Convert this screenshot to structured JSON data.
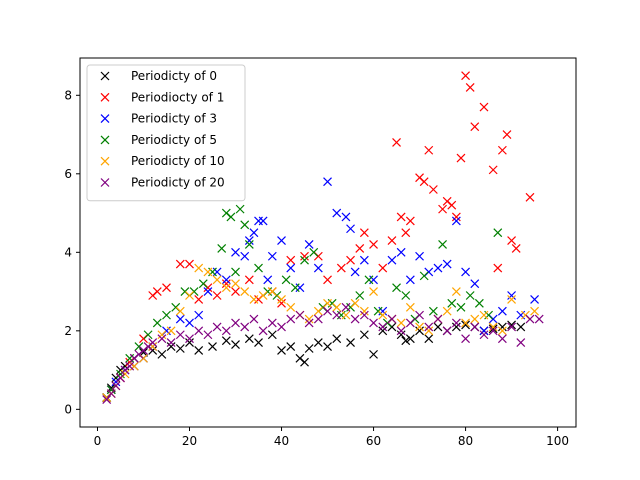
{
  "chart_data": {
    "type": "scatter",
    "title": "",
    "xlabel": "",
    "ylabel": "",
    "xlim": [
      -3.8,
      104
    ],
    "ylim": [
      -0.45,
      8.95
    ],
    "xticks": [
      0,
      20,
      40,
      60,
      80,
      100
    ],
    "yticks": [
      0,
      2,
      4,
      6,
      8
    ],
    "grid": false,
    "legend_position": "upper-left",
    "series": [
      {
        "name": "Periodicty of 0",
        "color": "#000000",
        "x": [
          2,
          3,
          4,
          5,
          6,
          8,
          10,
          12,
          14,
          16,
          18,
          20,
          22,
          25,
          28,
          30,
          33,
          35,
          38,
          40,
          42,
          44,
          45,
          46,
          48,
          50,
          52,
          55,
          58,
          60,
          62,
          64,
          66,
          67,
          68,
          70,
          72,
          74,
          76,
          78,
          80,
          82,
          84,
          86,
          88,
          90,
          92
        ],
        "y": [
          0.3,
          0.55,
          0.8,
          1.0,
          1.1,
          1.3,
          1.45,
          1.5,
          1.4,
          1.6,
          1.55,
          1.7,
          1.5,
          1.6,
          1.75,
          1.65,
          1.8,
          1.7,
          1.9,
          1.5,
          1.6,
          1.3,
          1.2,
          1.55,
          1.7,
          1.6,
          1.8,
          1.7,
          1.9,
          1.4,
          2.0,
          2.1,
          1.9,
          1.75,
          1.8,
          2.0,
          1.8,
          2.1,
          2.0,
          2.1,
          2.15,
          2.1,
          2.0,
          2.05,
          2.1,
          2.15,
          2.1
        ]
      },
      {
        "name": "Periodiocty of 1",
        "color": "#ff0000",
        "x": [
          2,
          3,
          5,
          7,
          10,
          12,
          13,
          15,
          18,
          20,
          22,
          24,
          26,
          28,
          30,
          33,
          35,
          38,
          40,
          42,
          45,
          48,
          50,
          53,
          55,
          57,
          58,
          60,
          62,
          64,
          65,
          66,
          67,
          68,
          70,
          71,
          72,
          73,
          75,
          76,
          77,
          78,
          79,
          80,
          81,
          82,
          84,
          86,
          87,
          88,
          89,
          90,
          91,
          94
        ],
        "y": [
          0.3,
          0.5,
          0.8,
          1.2,
          1.8,
          2.9,
          3.0,
          3.1,
          3.7,
          3.7,
          2.8,
          3.1,
          2.9,
          3.2,
          3.0,
          3.3,
          2.8,
          3.0,
          2.7,
          3.8,
          3.9,
          3.9,
          3.3,
          3.6,
          3.8,
          4.1,
          4.5,
          4.2,
          3.6,
          4.3,
          6.8,
          4.9,
          4.5,
          4.8,
          5.9,
          5.8,
          6.6,
          5.6,
          5.1,
          5.3,
          5.2,
          4.9,
          6.4,
          8.5,
          8.2,
          7.2,
          7.7,
          6.1,
          3.6,
          6.6,
          7.0,
          4.3,
          4.1,
          5.4
        ]
      },
      {
        "name": "Periodicty of 3",
        "color": "#0000ff",
        "x": [
          2,
          3,
          4,
          6,
          8,
          10,
          12,
          15,
          18,
          20,
          22,
          24,
          26,
          28,
          30,
          32,
          33,
          34,
          35,
          36,
          37,
          38,
          40,
          42,
          44,
          46,
          48,
          50,
          52,
          54,
          55,
          56,
          58,
          60,
          62,
          64,
          66,
          68,
          70,
          72,
          74,
          76,
          78,
          80,
          82,
          84,
          86,
          88,
          90,
          92,
          95
        ],
        "y": [
          0.3,
          0.5,
          0.7,
          1.0,
          1.1,
          1.3,
          1.6,
          2.0,
          2.3,
          2.2,
          2.4,
          3.0,
          3.5,
          3.3,
          4.0,
          3.9,
          4.3,
          4.5,
          4.8,
          4.8,
          3.3,
          3.9,
          4.3,
          3.6,
          3.1,
          4.2,
          3.6,
          5.8,
          5.0,
          4.9,
          4.6,
          3.5,
          3.8,
          3.3,
          2.5,
          3.8,
          4.0,
          3.3,
          3.9,
          3.5,
          3.6,
          3.7,
          4.8,
          3.5,
          3.2,
          2.0,
          2.3,
          2.5,
          2.9,
          2.4,
          2.8
        ]
      },
      {
        "name": "Periodicty of 5",
        "color": "#008000",
        "x": [
          2,
          3,
          5,
          7,
          9,
          11,
          13,
          15,
          17,
          19,
          21,
          23,
          25,
          27,
          28,
          29,
          30,
          31,
          32,
          33,
          35,
          37,
          39,
          41,
          43,
          45,
          47,
          49,
          51,
          53,
          55,
          57,
          59,
          61,
          63,
          65,
          67,
          69,
          71,
          73,
          75,
          77,
          79,
          81,
          83,
          85,
          87
        ],
        "y": [
          0.3,
          0.5,
          0.9,
          1.3,
          1.6,
          1.9,
          2.2,
          2.4,
          2.6,
          3.0,
          3.0,
          3.2,
          3.5,
          4.1,
          5.0,
          4.9,
          3.5,
          5.1,
          4.7,
          4.2,
          3.6,
          3.0,
          2.9,
          3.3,
          3.1,
          3.8,
          4.0,
          2.6,
          2.7,
          2.4,
          2.6,
          2.9,
          3.3,
          2.5,
          2.2,
          3.1,
          2.9,
          2.3,
          3.4,
          2.5,
          4.2,
          2.7,
          2.6,
          2.9,
          2.7,
          2.4,
          4.5
        ]
      },
      {
        "name": "Periodicty of 10",
        "color": "#ffa500",
        "x": [
          2,
          3,
          4,
          6,
          8,
          10,
          12,
          14,
          16,
          18,
          20,
          22,
          24,
          26,
          28,
          30,
          32,
          34,
          36,
          38,
          40,
          42,
          44,
          46,
          48,
          50,
          52,
          54,
          56,
          58,
          60,
          62,
          64,
          66,
          68,
          70,
          72,
          74,
          76,
          78,
          80,
          82,
          84,
          86,
          88,
          90,
          93,
          95
        ],
        "y": [
          0.3,
          0.4,
          0.6,
          0.9,
          1.1,
          1.3,
          1.6,
          1.9,
          2.0,
          2.5,
          2.9,
          3.6,
          3.5,
          3.3,
          3.1,
          3.2,
          3.0,
          2.8,
          2.9,
          3.0,
          2.8,
          2.6,
          2.4,
          2.3,
          2.5,
          2.7,
          2.6,
          2.4,
          2.7,
          2.5,
          3.0,
          2.4,
          2.3,
          2.2,
          2.6,
          2.1,
          2.0,
          2.3,
          2.5,
          3.0,
          2.2,
          2.3,
          2.4,
          2.1,
          2.0,
          2.8,
          2.4,
          2.5
        ]
      },
      {
        "name": "Periodicty of 20",
        "color": "#800080",
        "x": [
          2,
          3,
          4,
          5,
          6,
          7,
          8,
          9,
          10,
          11,
          12,
          14,
          16,
          18,
          20,
          22,
          24,
          26,
          28,
          30,
          32,
          34,
          36,
          38,
          40,
          42,
          44,
          46,
          48,
          50,
          52,
          54,
          56,
          58,
          60,
          62,
          64,
          66,
          68,
          70,
          72,
          74,
          76,
          78,
          80,
          82,
          84,
          86,
          88,
          90,
          92,
          94,
          96
        ],
        "y": [
          0.25,
          0.4,
          0.6,
          0.8,
          1.0,
          1.1,
          1.3,
          1.4,
          1.5,
          1.6,
          1.7,
          1.8,
          1.7,
          1.9,
          1.8,
          2.0,
          1.9,
          2.1,
          2.0,
          2.2,
          2.1,
          2.3,
          2.0,
          2.2,
          2.1,
          2.3,
          2.4,
          2.2,
          2.3,
          2.5,
          2.4,
          2.6,
          2.3,
          2.4,
          2.2,
          2.1,
          2.3,
          2.0,
          2.2,
          2.4,
          2.1,
          2.3,
          2.0,
          2.2,
          1.8,
          2.1,
          1.9,
          2.0,
          1.8,
          2.1,
          1.7,
          2.3,
          2.3
        ]
      }
    ]
  }
}
